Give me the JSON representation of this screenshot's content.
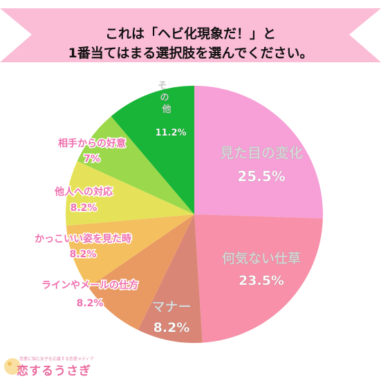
{
  "title": {
    "line1": "これは「ヘビ化現象だ！」と",
    "line2": "1番当てはまる選択肢を選んでください。"
  },
  "colors": {
    "banner": "#fbbcd5",
    "label_pink": "#ef6fae",
    "label_white": "#ffffff"
  },
  "chart_data": {
    "type": "pie",
    "start": "top, clockwise",
    "slices": [
      {
        "label": "見た目の変化",
        "value": "25.5%",
        "pct": 25.5,
        "color": "#f79fd7"
      },
      {
        "label": "何気ない仕草",
        "value": "23.5%",
        "pct": 23.5,
        "color": "#f790a8"
      },
      {
        "label": "マナー",
        "value": "8.2%",
        "pct": 8.2,
        "color": "#d98676"
      },
      {
        "label": "ラインやメールの仕方",
        "value": "8.2%",
        "pct": 8.2,
        "color": "#e99a63"
      },
      {
        "label": "かっこいい姿を見た時",
        "value": "8.2%",
        "pct": 8.2,
        "color": "#f4c05f"
      },
      {
        "label": "他人への対応",
        "value": "8.2%",
        "pct": 8.2,
        "color": "#e5e25a"
      },
      {
        "label": "相手からの好意",
        "value": "7%",
        "pct": 7,
        "color": "#9bd84b"
      },
      {
        "label": "その他",
        "value": "11.2%",
        "pct": 11.2,
        "color": "#19b538"
      }
    ]
  },
  "logo": {
    "tagline": "恋愛に悩む女子を応援する恋愛メディア",
    "name": "恋するうさぎ"
  }
}
